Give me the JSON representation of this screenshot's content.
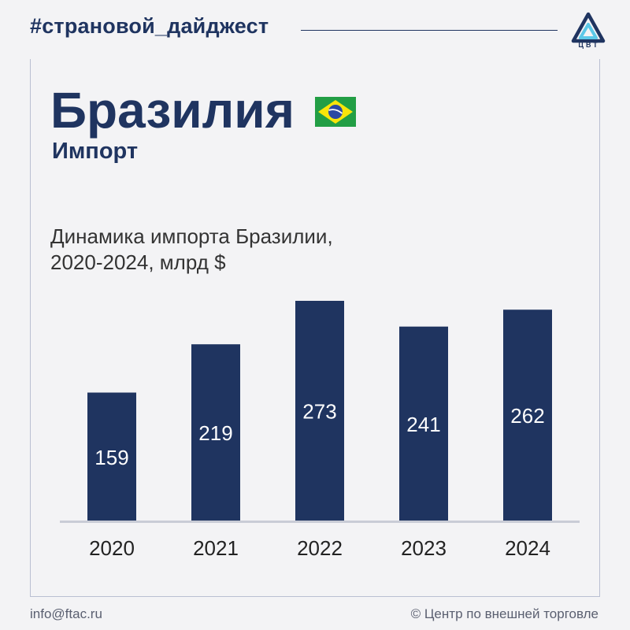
{
  "header": {
    "hashtag": "#страновой_дайджест",
    "logo_text": "ЦВТ"
  },
  "heading": {
    "country": "Бразилия",
    "subtitle": "Импорт",
    "flag_icon": "brazil-flag-icon"
  },
  "colors": {
    "brand": "#1f3460",
    "bar": "#1f3460",
    "background": "#f3f3f5",
    "flag_green": "#229e45",
    "flag_yellow": "#f8e509",
    "flag_blue": "#2b49a3"
  },
  "chart_data": {
    "type": "bar",
    "title": "Динамика импорта Бразилии,\n2020-2024, млрд $",
    "categories": [
      "2020",
      "2021",
      "2022",
      "2023",
      "2024"
    ],
    "values": [
      159,
      219,
      273,
      241,
      262
    ],
    "value_labels": [
      "159",
      "219",
      "273",
      "241",
      "262"
    ],
    "xlabel": "",
    "ylabel": "",
    "ylim": [
      0,
      273
    ],
    "grid": false,
    "legend": "none"
  },
  "footer": {
    "email": "info@ftac.ru",
    "copyright": "© Центр по внешней торговле"
  }
}
